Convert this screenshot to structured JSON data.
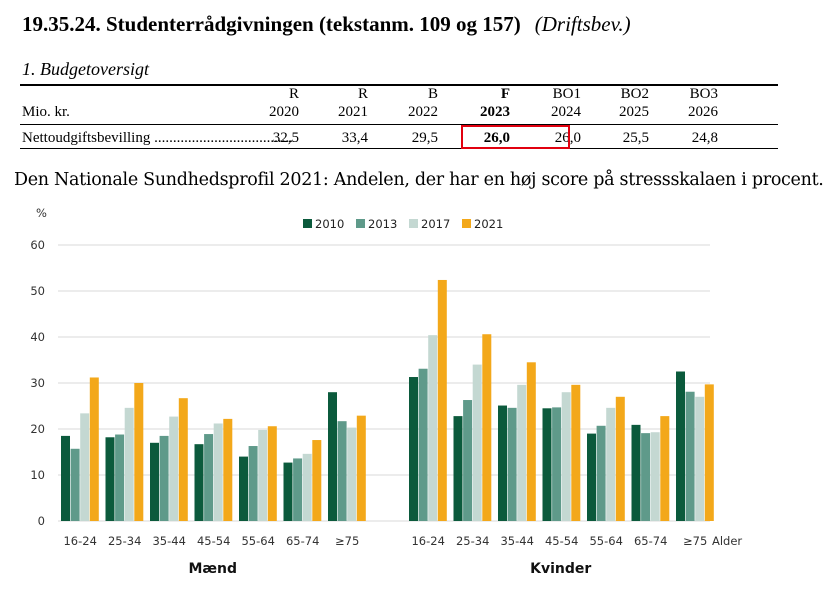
{
  "header": {
    "title": "19.35.24. Studenterrådgivningen (tekstanm. 109 og 157)",
    "status": "(Driftsbev.)",
    "subtitle": "1. Budgetoversigt"
  },
  "budget": {
    "unit_label": "Mio. kr.",
    "columns": [
      {
        "type": "R",
        "year": "2020",
        "bold": false
      },
      {
        "type": "R",
        "year": "2021",
        "bold": false
      },
      {
        "type": "B",
        "year": "2022",
        "bold": false
      },
      {
        "type": "F",
        "year": "2023",
        "bold": true
      },
      {
        "type": "BO1",
        "year": "2024",
        "bold": false
      },
      {
        "type": "BO2",
        "year": "2025",
        "bold": false
      },
      {
        "type": "BO3",
        "year": "2026",
        "bold": false
      }
    ],
    "row_label": "Nettoudgiftsbevilling .....................................",
    "values": [
      "32,5",
      "33,4",
      "29,5",
      "26,0",
      "26,0",
      "25,5",
      "24,8"
    ],
    "highlight_color": "#e1000f"
  },
  "caption": "Den Nationale Sundhedsprofil 2021: Andelen, der har en høj score på stressskalaen i procent.",
  "chart_data": {
    "type": "bar",
    "ylabel": "%",
    "ylim": [
      0,
      60
    ],
    "yticks": [
      0,
      10,
      20,
      30,
      40,
      50,
      60
    ],
    "grid": true,
    "legend_position": "top",
    "x_axis_label": "Alder",
    "groups": [
      {
        "name": "Mænd",
        "categories": [
          "16-24",
          "25-34",
          "35-44",
          "45-54",
          "55-64",
          "65-74",
          "≥75"
        ],
        "series": [
          {
            "name": "2010",
            "values": [
              18.5,
              18.2,
              17.0,
              16.7,
              14.0,
              12.7,
              28.0
            ]
          },
          {
            "name": "2013",
            "values": [
              15.7,
              18.8,
              18.5,
              18.9,
              16.3,
              13.6,
              21.7
            ]
          },
          {
            "name": "2017",
            "values": [
              23.4,
              24.6,
              22.7,
              21.2,
              19.8,
              14.6,
              20.3
            ]
          },
          {
            "name": "2021",
            "values": [
              31.2,
              30.0,
              26.7,
              22.2,
              20.6,
              17.6,
              22.9
            ]
          }
        ]
      },
      {
        "name": "Kvinder",
        "categories": [
          "16-24",
          "25-34",
          "35-44",
          "45-54",
          "55-64",
          "65-74",
          "≥75"
        ],
        "series": [
          {
            "name": "2010",
            "values": [
              31.3,
              22.8,
              25.1,
              24.5,
              19.0,
              20.9,
              32.5
            ]
          },
          {
            "name": "2013",
            "values": [
              33.1,
              26.3,
              24.6,
              24.7,
              20.7,
              19.1,
              28.1
            ]
          },
          {
            "name": "2017",
            "values": [
              40.4,
              34.0,
              29.6,
              28.0,
              24.6,
              19.3,
              27.0
            ]
          },
          {
            "name": "2021",
            "values": [
              52.4,
              40.6,
              34.5,
              29.6,
              27.0,
              22.8,
              29.7
            ]
          }
        ]
      }
    ],
    "colors": [
      "#0b5a3c",
      "#5f9a8a",
      "#c4d8d2",
      "#f3a81a"
    ]
  }
}
